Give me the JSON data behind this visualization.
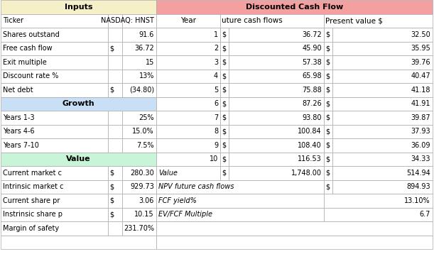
{
  "inputs_header": "Inputs",
  "dcf_header": "Discounted Cash Flow",
  "input_labels": [
    "Ticker",
    "Shares outstand",
    "Free cash flow",
    "Exit multiple",
    "Discount rate %",
    "Net debt"
  ],
  "input_dollars": [
    "",
    "",
    "$",
    "",
    "",
    "$"
  ],
  "input_values": [
    "NASDAQ: HNST",
    "91.6",
    "36.72",
    "15",
    "13%",
    "(34.80)"
  ],
  "growth_header": "Growth",
  "growth_labels": [
    "Years 1-3",
    "Years 4-6",
    "Years 7-10"
  ],
  "growth_values": [
    "25%",
    "15.0%",
    "7.5%"
  ],
  "value_header": "Value",
  "value_labels": [
    "Current market c",
    "Intrinsic market c",
    "Current share pr",
    "Instrinsic share p",
    "Margin of safety"
  ],
  "value_dollars": [
    "$",
    "$",
    "$",
    "$",
    ""
  ],
  "value_values": [
    "280.30",
    "929.73",
    "3.06",
    "10.15",
    "231.70%"
  ],
  "dcf_years": [
    "1",
    "2",
    "3",
    "4",
    "5",
    "6",
    "7",
    "8",
    "9",
    "10"
  ],
  "dcf_fcf": [
    "36.72",
    "45.90",
    "57.38",
    "65.98",
    "75.88",
    "87.26",
    "93.80",
    "100.84",
    "108.40",
    "116.53"
  ],
  "dcf_pv": [
    "32.50",
    "35.95",
    "39.76",
    "40.47",
    "41.18",
    "41.91",
    "39.87",
    "37.93",
    "36.09",
    "34.33"
  ],
  "sum_value_fcf": "1,748.00",
  "sum_value_pv": "514.94",
  "sum_npv": "894.93",
  "sum_fcf_yield": "13.10%",
  "sum_ev_fcf": "6.7",
  "color_inputs_header": "#f5f0c8",
  "color_growth_header": "#c8dff5",
  "color_value_header": "#c8f5d8",
  "color_dcf_header": "#f5a0a0",
  "color_white": "#ffffff",
  "color_light_gray": "#e8e8e8",
  "color_border": "#aaaaaa",
  "fig_width": 6.11,
  "fig_height": 3.58,
  "dpi": 100
}
